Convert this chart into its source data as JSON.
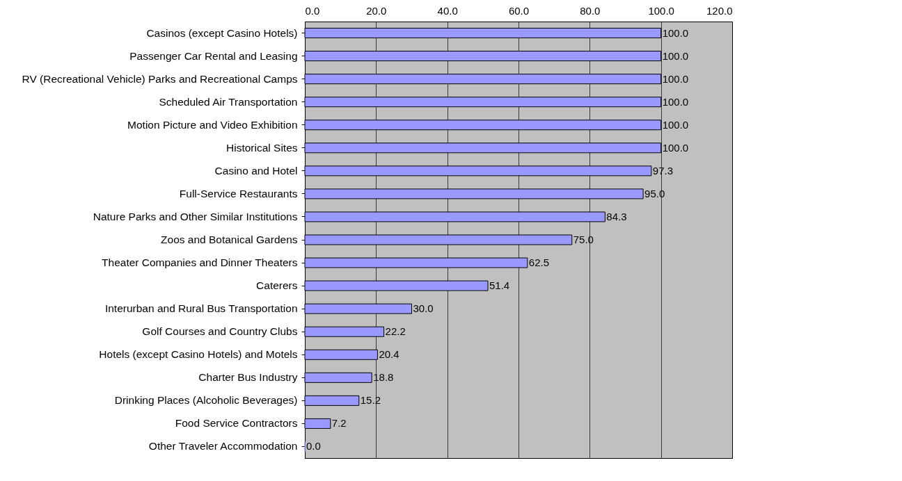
{
  "chart_data": {
    "type": "bar",
    "orientation": "horizontal",
    "categories": [
      "Casinos (except Casino Hotels)",
      "Passenger Car Rental and Leasing",
      "RV (Recreational Vehicle) Parks and Recreational Camps",
      "Scheduled Air Transportation",
      "Motion Picture and Video Exhibition",
      "Historical Sites",
      "Casino and Hotel",
      "Full-Service Restaurants",
      "Nature Parks and Other Similar Institutions",
      "Zoos and Botanical Gardens",
      "Theater Companies and Dinner Theaters",
      "Caterers",
      "Interurban and Rural Bus Transportation",
      "Golf Courses and Country Clubs",
      "Hotels (except Casino Hotels) and Motels",
      "Charter Bus Industry",
      "Drinking Places (Alcoholic Beverages)",
      "Food Service Contractors",
      "Other Traveler Accommodation"
    ],
    "values": [
      100.0,
      100.0,
      100.0,
      100.0,
      100.0,
      100.0,
      97.3,
      95.0,
      84.3,
      75.0,
      62.5,
      51.4,
      30.0,
      22.2,
      20.4,
      18.8,
      15.2,
      7.2,
      0.0
    ],
    "value_labels": [
      "100.0",
      "100.0",
      "100.0",
      "100.0",
      "100.0",
      "100.0",
      "97.3",
      "95.0",
      "84.3",
      "75.0",
      "62.5",
      "51.4",
      "30.0",
      "22.2",
      "20.4",
      "18.8",
      "15.2",
      "7.2",
      "0.0"
    ],
    "color": "#9999ff",
    "xlim": [
      0,
      120
    ],
    "xticks": [
      {
        "value": 0,
        "label": "0.0"
      },
      {
        "value": 20,
        "label": "20.0"
      },
      {
        "value": 40,
        "label": "40.0"
      },
      {
        "value": 60,
        "label": "60.0"
      },
      {
        "value": 80,
        "label": "80.0"
      },
      {
        "value": 100,
        "label": "100.0"
      },
      {
        "value": 120,
        "label": "120.0"
      }
    ],
    "grid": "x"
  }
}
